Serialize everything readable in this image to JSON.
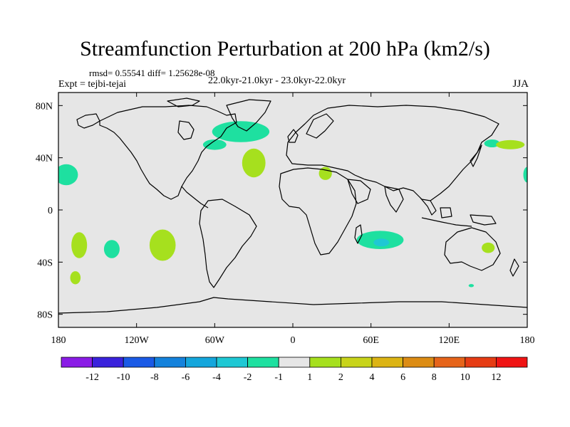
{
  "chart_data": {
    "type": "heatmap",
    "title": "Streamfunction Perturbation at 200 hPa (km2/s)",
    "stats": "rmsd= 0.55541  diff= 1.25628e-08",
    "experiment": "Expt = tejbi-tejai",
    "period": "22.0kyr-21.0kyr - 23.0kyr-22.0kyr",
    "season": "JJA",
    "projection": "cylindrical equidistant, 180W-180E, 90S-90N",
    "xlim": [
      -180,
      180
    ],
    "ylim": [
      -90,
      90
    ],
    "xticks": [
      {
        "value": -180,
        "label": "180"
      },
      {
        "value": -120,
        "label": "120W"
      },
      {
        "value": -60,
        "label": "60W"
      },
      {
        "value": 0,
        "label": "0"
      },
      {
        "value": 60,
        "label": "60E"
      },
      {
        "value": 120,
        "label": "120E"
      },
      {
        "value": 180,
        "label": "180"
      }
    ],
    "yticks": [
      {
        "value": 80,
        "label": "80N"
      },
      {
        "value": 40,
        "label": "40N"
      },
      {
        "value": 0,
        "label": "0"
      },
      {
        "value": -40,
        "label": "40S"
      },
      {
        "value": -80,
        "label": "80S"
      }
    ],
    "background_color": "#e6e6e6",
    "colorbar": {
      "boundaries": [
        "-12",
        "-10",
        "-8",
        "-6",
        "-4",
        "-2",
        "-1",
        "1",
        "2",
        "4",
        "6",
        "8",
        "10",
        "12"
      ],
      "colors": [
        "#8a1ce6",
        "#3a22dc",
        "#1a5ae6",
        "#1482dc",
        "#14a6dc",
        "#1ec8d4",
        "#1ee0a0",
        "#e6e6e6",
        "#a6e01e",
        "#c8d41a",
        "#dcb414",
        "#dc8c14",
        "#e6641a",
        "#e63c14",
        "#f01414"
      ]
    },
    "anomalies": [
      {
        "region": "North Atlantic / Greenland",
        "lon": -40,
        "lat": 60,
        "rlon": 22,
        "rlat": 8,
        "level": "-2 to -1",
        "color": "#1ee0a0"
      },
      {
        "region": "Gulf of St. Lawrence",
        "lon": -60,
        "lat": 50,
        "rlon": 9,
        "rlat": 4,
        "level": "-2 to -1",
        "color": "#1ee0a0"
      },
      {
        "region": "Central North Atlantic",
        "lon": -30,
        "lat": 36,
        "rlon": 9,
        "rlat": 11,
        "level": "1 to 2",
        "color": "#a6e01e"
      },
      {
        "region": "North Africa",
        "lon": 25,
        "lat": 28,
        "rlon": 5,
        "rlat": 5,
        "level": "1 to 2",
        "color": "#a6e01e"
      },
      {
        "region": "Central North Pacific",
        "lon": -174,
        "lat": 27,
        "rlon": 9,
        "rlat": 8,
        "level": "-2 to -1",
        "color": "#1ee0a0"
      },
      {
        "region": "Central North Pacific (dateline)",
        "lon": 180,
        "lat": 27,
        "rlon": 3,
        "rlat": 6,
        "level": "-2 to -1",
        "color": "#1ee0a0"
      },
      {
        "region": "Northwest Pacific",
        "lon": 153,
        "lat": 51,
        "rlon": 6,
        "rlat": 3,
        "level": "-2 to -1",
        "color": "#1ee0a0"
      },
      {
        "region": "Kuril / Aleutian",
        "lon": 167,
        "lat": 50,
        "rlon": 11,
        "rlat": 3.5,
        "level": "1 to 2",
        "color": "#a6e01e"
      },
      {
        "region": "South Pacific west",
        "lon": -164,
        "lat": -27,
        "rlon": 6,
        "rlat": 10,
        "level": "1 to 2",
        "color": "#a6e01e"
      },
      {
        "region": "South Pacific central",
        "lon": -139,
        "lat": -30,
        "rlon": 6,
        "rlat": 7,
        "level": "-2 to -1",
        "color": "#1ee0a0"
      },
      {
        "region": "Southeast Pacific",
        "lon": -100,
        "lat": -27,
        "rlon": 10,
        "rlat": 12,
        "level": "1 to 2",
        "color": "#a6e01e"
      },
      {
        "region": "South Pacific southwest",
        "lon": -167,
        "lat": -52,
        "rlon": 4,
        "rlat": 5,
        "level": "1 to 2",
        "color": "#a6e01e"
      },
      {
        "region": "South Indian Ocean",
        "lon": 67,
        "lat": -23,
        "rlon": 18,
        "rlat": 7,
        "level": "-2 to -1",
        "color": "#1ee0a0"
      },
      {
        "region": "South Indian Ocean core",
        "lon": 68,
        "lat": -25,
        "rlon": 6,
        "rlat": 3,
        "level": "-4 to -2",
        "color": "#1ec8d4"
      },
      {
        "region": "Southeast Australia",
        "lon": 150,
        "lat": -29,
        "rlon": 5,
        "rlat": 4,
        "level": "1 to 2",
        "color": "#a6e01e"
      },
      {
        "region": "Tasman Sea south",
        "lon": 137,
        "lat": -58,
        "rlon": 2,
        "rlat": 1.2,
        "level": "-2 to -1",
        "color": "#1ee0a0"
      }
    ]
  }
}
